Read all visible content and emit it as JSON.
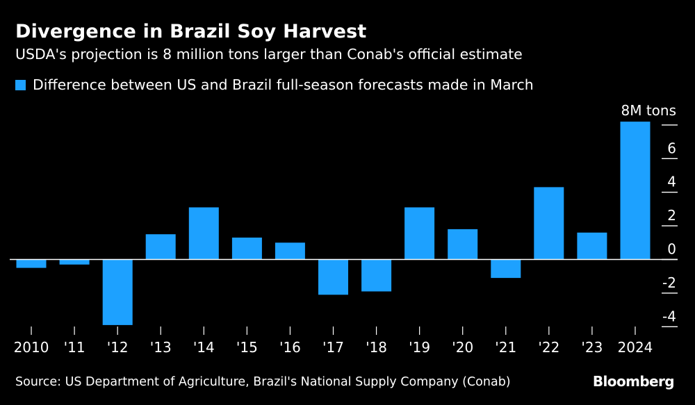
{
  "header": {
    "title": "Divergence in Brazil Soy Harvest",
    "subtitle": "USDA's projection is 8 million tons larger than Conab's official estimate"
  },
  "colors": {
    "background": "#000000",
    "bar": "#1da1ff",
    "text": "#ffffff",
    "axis": "#ffffff"
  },
  "chart_data": {
    "type": "bar",
    "categories": [
      "2010",
      "'11",
      "'12",
      "'13",
      "'14",
      "'15",
      "'16",
      "'17",
      "'18",
      "'19",
      "'20",
      "'21",
      "'22",
      "'23",
      "2024"
    ],
    "series": [
      {
        "name": "Difference between US and Brazil full-season forecasts made in March",
        "values": [
          -0.5,
          -0.3,
          -3.9,
          1.5,
          3.1,
          1.3,
          1.0,
          -2.1,
          -1.9,
          3.1,
          1.8,
          -1.1,
          4.3,
          1.6,
          8.2
        ]
      }
    ],
    "unit_label": "8M tons",
    "ylim": [
      -4.9,
      8.6
    ],
    "yticks": [
      -4,
      -2,
      0,
      2,
      4,
      6,
      8
    ],
    "ytick_labels": [
      "-4",
      "-2",
      "0",
      "2",
      "4",
      "6",
      ""
    ],
    "legend_position": "top-left",
    "grid": false
  },
  "footer": {
    "source": "Source: US Department of Agriculture, Brazil's National Supply Company (Conab)",
    "brand": "Bloomberg"
  }
}
